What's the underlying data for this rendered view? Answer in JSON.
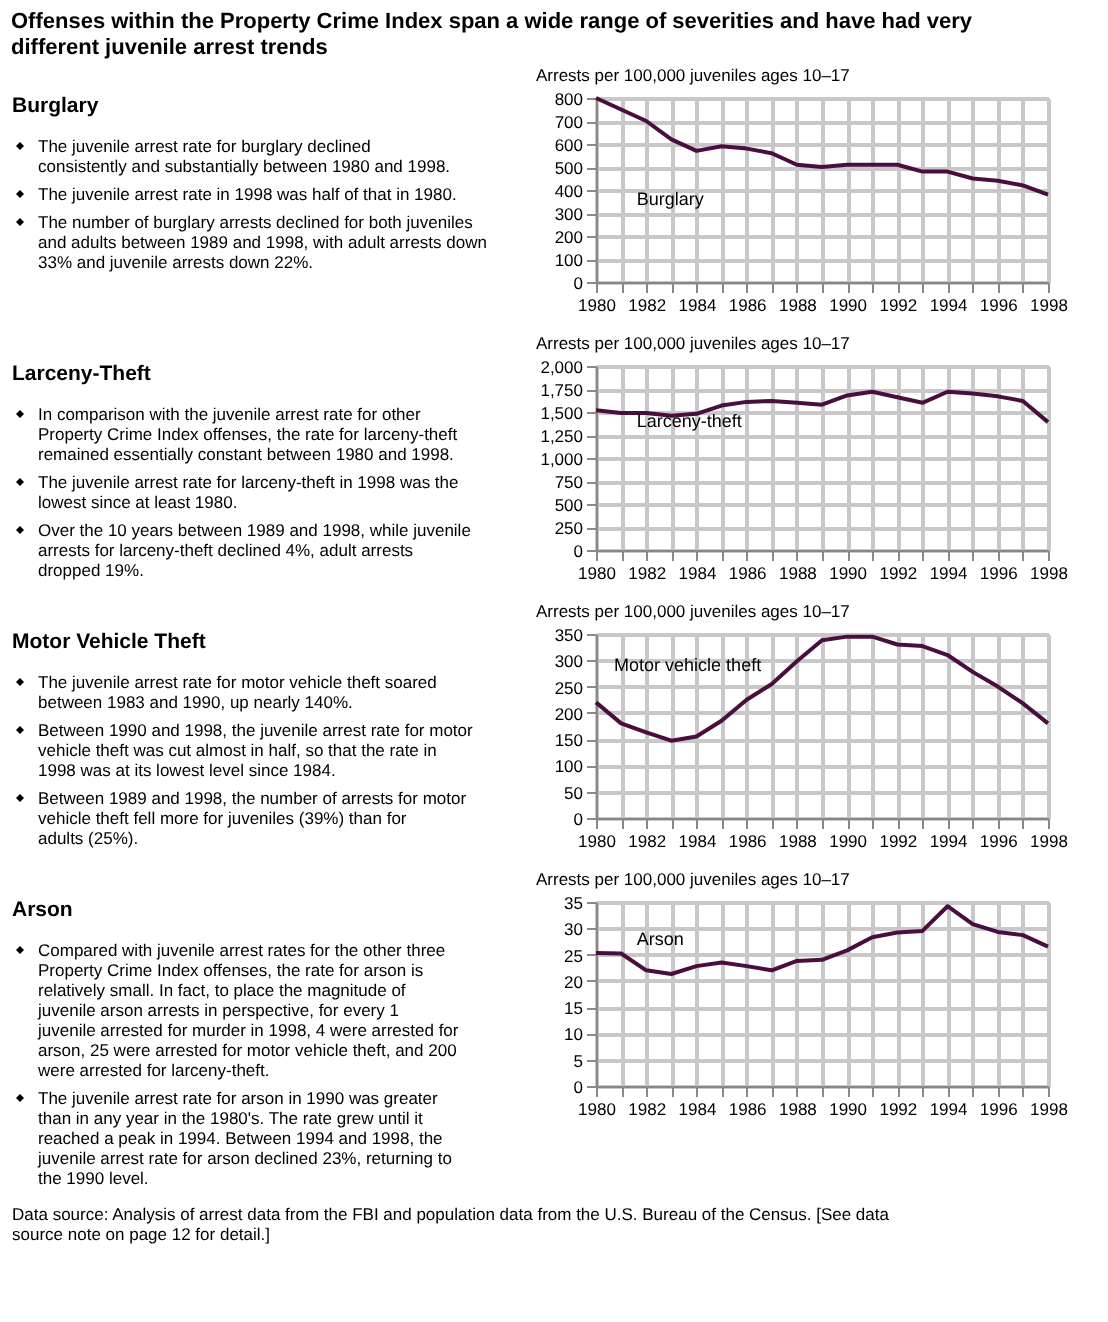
{
  "chart_data": [
    {
      "type": "line",
      "title": "Offenses within the Property Crime Index span a wide range of severities and have had very different juvenile arrest trends",
      "ylabel": "Arrests per 100,000 juveniles ages 10–17",
      "x": [
        1980,
        1981,
        1982,
        1983,
        1984,
        1985,
        1986,
        1987,
        1988,
        1989,
        1990,
        1991,
        1992,
        1993,
        1994,
        1995,
        1996,
        1997,
        1998
      ],
      "series": [
        {
          "name": "Burglary",
          "color": "#4a0e3e",
          "values": [
            800,
            750,
            700,
            620,
            570,
            590,
            580,
            560,
            510,
            500,
            510,
            510,
            510,
            480,
            480,
            450,
            440,
            420,
            380
          ]
        }
      ],
      "xlim": [
        1980,
        1998
      ],
      "xticks": [
        1980,
        {
          "value": 1981,
          "label": null
        },
        1982,
        {
          "value": 1983,
          "label": null
        },
        1984,
        {
          "value": 1985,
          "label": null
        },
        1986,
        {
          "value": 1987,
          "label": null
        },
        1988,
        {
          "value": 1989,
          "label": null
        },
        1990,
        {
          "value": 1991,
          "label": null
        },
        1992,
        {
          "value": 1993,
          "label": null
        },
        1994,
        {
          "value": 1995,
          "label": null
        },
        1996,
        {
          "value": 1997,
          "label": null
        },
        1998
      ],
      "ylim": [
        0,
        800
      ],
      "yticks": [
        0,
        100,
        200,
        300,
        400,
        500,
        600,
        700,
        800
      ],
      "grid": true,
      "annotations": [
        "Burglary",
        "The juvenile arrest rate for burglary declined consistently and substantially between 1980 and 1998.",
        "The juvenile arrest rate in 1998 was half of that in 1980.",
        "The number of burglary arrests declined for both juveniles and adults between 1989 and 1998, with adult arrests down 33% and juvenile arrests down 22%."
      ]
    },
    {
      "type": "line",
      "ylabel": "Arrests per 100,000 juveniles ages 10–17",
      "x": [
        1980,
        1981,
        1982,
        1983,
        1984,
        1985,
        1986,
        1987,
        1988,
        1989,
        1990,
        1991,
        1992,
        1993,
        1994,
        1995,
        1996,
        1997,
        1998
      ],
      "series": [
        {
          "name": "Larceny-theft",
          "color": "#4a0e3e",
          "values": [
            1520,
            1490,
            1490,
            1460,
            1480,
            1570,
            1610,
            1620,
            1600,
            1580,
            1680,
            1720,
            1660,
            1600,
            1720,
            1700,
            1670,
            1620,
            1390
          ]
        }
      ],
      "xlim": [
        1980,
        1998
      ],
      "xticks": [
        1980,
        {
          "value": 1981,
          "label": null
        },
        1982,
        {
          "value": 1983,
          "label": null
        },
        1984,
        {
          "value": 1985,
          "label": null
        },
        1986,
        {
          "value": 1987,
          "label": null
        },
        1988,
        {
          "value": 1989,
          "label": null
        },
        1990,
        {
          "value": 1991,
          "label": null
        },
        1992,
        {
          "value": 1993,
          "label": null
        },
        1994,
        {
          "value": 1995,
          "label": null
        },
        1996,
        {
          "value": 1997,
          "label": null
        },
        1998
      ],
      "ylim": [
        0,
        2000
      ],
      "yticks": [
        0,
        250,
        500,
        750,
        {
          "value": 1000,
          "label": "1,000"
        },
        {
          "value": 1250,
          "label": "1,250"
        },
        {
          "value": 1500,
          "label": "1,500"
        },
        {
          "value": 1750,
          "label": "1,750"
        },
        {
          "value": 2000,
          "label": "2,000"
        }
      ],
      "grid": true,
      "annotations": [
        "Larceny-Theft",
        "In comparison with the juvenile arrest rate for other Property Crime Index offenses, the rate for larceny-theft remained essentially constant between 1980 and 1998.",
        "The juvenile arrest rate for larceny-theft in 1998 was the lowest since at least 1980.",
        "Over the 10 years between 1989 and 1998, while juvenile arrests for larceny-theft declined 4%, adult arrests dropped 19%."
      ]
    },
    {
      "type": "line",
      "ylabel": "Arrests per 100,000 juveniles ages 10–17",
      "x": [
        1980,
        1981,
        1982,
        1983,
        1984,
        1985,
        1986,
        1987,
        1988,
        1989,
        1990,
        1991,
        1992,
        1993,
        1994,
        1995,
        1996,
        1997,
        1998
      ],
      "series": [
        {
          "name": "Motor vehicle theft",
          "color": "#4a0e3e",
          "values": [
            220,
            180,
            163,
            147,
            155,
            185,
            225,
            255,
            298,
            338,
            345,
            345,
            330,
            327,
            310,
            278,
            250,
            218,
            180
          ]
        }
      ],
      "xlim": [
        1980,
        1998
      ],
      "xticks": [
        1980,
        {
          "value": 1981,
          "label": null
        },
        1982,
        {
          "value": 1983,
          "label": null
        },
        1984,
        {
          "value": 1985,
          "label": null
        },
        1986,
        {
          "value": 1987,
          "label": null
        },
        1988,
        {
          "value": 1989,
          "label": null
        },
        1990,
        {
          "value": 1991,
          "label": null
        },
        1992,
        {
          "value": 1993,
          "label": null
        },
        1994,
        {
          "value": 1995,
          "label": null
        },
        1996,
        {
          "value": 1997,
          "label": null
        },
        1998
      ],
      "ylim": [
        0,
        350
      ],
      "yticks": [
        0,
        50,
        100,
        150,
        200,
        250,
        300,
        350
      ],
      "grid": true,
      "annotations": [
        "Motor Vehicle Theft",
        "The juvenile arrest rate for motor vehicle theft soared between 1983 and 1990, up nearly 140%.",
        "Between 1990 and 1998, the juvenile arrest rate for motor vehicle theft was cut almost in half, so that the rate in 1998 was at its lowest level since 1984.",
        "Between 1989 and 1998, the number of arrests for motor vehicle theft fell more for juveniles (39%) than for adults (25%)."
      ]
    },
    {
      "type": "line",
      "ylabel": "Arrests per 100,000 juveniles ages 10–17",
      "x": [
        1980,
        1981,
        1982,
        1983,
        1984,
        1985,
        1986,
        1987,
        1988,
        1989,
        1990,
        1991,
        1992,
        1993,
        1994,
        1995,
        1996,
        1997,
        1998
      ],
      "series": [
        {
          "name": "Arson",
          "color": "#4a0e3e",
          "values": [
            25.3,
            25.2,
            22,
            21.3,
            22.8,
            23.5,
            22.8,
            22,
            23.8,
            24,
            25.8,
            28.3,
            29.2,
            29.5,
            34.2,
            30.8,
            29.3,
            28.7,
            26.5
          ]
        }
      ],
      "xlim": [
        1980,
        1998
      ],
      "xticks": [
        1980,
        {
          "value": 1981,
          "label": null
        },
        1982,
        {
          "value": 1983,
          "label": null
        },
        1984,
        {
          "value": 1985,
          "label": null
        },
        1986,
        {
          "value": 1987,
          "label": null
        },
        1988,
        {
          "value": 1989,
          "label": null
        },
        1990,
        {
          "value": 1991,
          "label": null
        },
        1992,
        {
          "value": 1993,
          "label": null
        },
        1994,
        {
          "value": 1995,
          "label": null
        },
        1996,
        {
          "value": 1997,
          "label": null
        },
        1998
      ],
      "ylim": [
        0,
        35
      ],
      "yticks": [
        0,
        5,
        10,
        15,
        20,
        25,
        30,
        35
      ],
      "grid": true,
      "annotations": [
        "Arson",
        "Compared with juvenile arrest rates for the other three Property Crime Index offenses, the rate for arson is relatively small. In fact, to place the magnitude of juvenile arson arrests in perspective, for every 1 juvenile arrested for murder in 1998, 4 were arrested for arson, 25 were arrested for motor vehicle theft, and 200 were arrested for larceny-theft.",
        "The juvenile arrest rate for arson in 1990 was greater than in any year in the 1980's. The rate grew until it reached a peak in 1994. Between 1994 and 1998, the juvenile arrest rate for arson declined 23%, returning to the 1990 level.",
        "Data source: Analysis of arrest data from the FBI and population data from the U.S. Bureau of the Census. [See data source note on page 12 for detail.]"
      ]
    }
  ]
}
